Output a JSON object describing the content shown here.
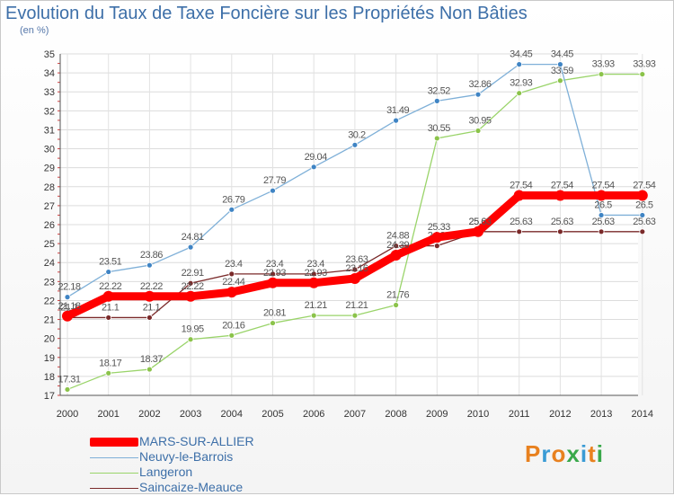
{
  "title": "Evolution du Taux de Taxe Foncière sur les Propriétés Non Bâties",
  "unit": "(en %)",
  "logo": {
    "text": "Proxiti",
    "colors": [
      "#e8811f",
      "#3a9bd5",
      "#e8811f",
      "#39a84a",
      "#3a9bd5",
      "#e8811f",
      "#39a84a"
    ]
  },
  "chart_data": {
    "type": "line",
    "title": "Evolution du Taux de Taxe Foncière sur les Propriétés Non Bâties",
    "ylabel": "(en %)",
    "xlabel": "",
    "ylim": [
      17,
      35
    ],
    "yticks": [
      17,
      18,
      19,
      20,
      21,
      22,
      23,
      24,
      25,
      26,
      27,
      28,
      29,
      30,
      31,
      32,
      33,
      34,
      35
    ],
    "categories": [
      "2000",
      "2001",
      "2002",
      "2003",
      "2004",
      "2005",
      "2006",
      "2007",
      "2008",
      "2009",
      "2010",
      "2011",
      "2012",
      "2013",
      "2014"
    ],
    "series": [
      {
        "name": "Saincaize-Meauce",
        "color": "#7a2a2a",
        "marker": "#7a2a2a",
        "values": [
          21.1,
          21.1,
          21.1,
          22.91,
          23.4,
          23.4,
          23.4,
          23.63,
          24.88,
          24.88,
          25.63,
          25.63,
          25.63,
          25.63,
          25.63
        ],
        "labels": [
          "21.1",
          "21.1",
          "21.1",
          "22.91",
          "23.4",
          "23.4",
          "23.4",
          "23.63",
          "24.88",
          "24.88",
          "25.63",
          "25.63",
          "25.63",
          "25.63",
          "25.63"
        ]
      },
      {
        "name": "Langeron",
        "color": "#9ad46a",
        "marker": "#8bc34a",
        "values": [
          17.31,
          18.17,
          18.37,
          19.95,
          20.16,
          20.81,
          21.21,
          21.21,
          21.76,
          30.55,
          30.95,
          32.93,
          33.59,
          33.93,
          33.93
        ],
        "labels": [
          "17.31",
          "18.17",
          "18.37",
          "19.95",
          "20.16",
          "20.81",
          "21.21",
          "21.21",
          "21.76",
          "30.55",
          "30.95",
          "32.93",
          "33.59",
          "33.93",
          "33.93"
        ]
      },
      {
        "name": "Neuvy-le-Barrois",
        "color": "#7fb0d8",
        "marker": "#3f84c4",
        "values": [
          22.18,
          23.51,
          23.86,
          24.81,
          26.79,
          27.79,
          29.04,
          30.2,
          31.49,
          32.52,
          32.86,
          34.45,
          34.45,
          26.5,
          26.5
        ],
        "labels": [
          "22.18",
          "23.51",
          "23.86",
          "24.81",
          "26.79",
          "27.79",
          "29.04",
          "30.2",
          "31.49",
          "32.52",
          "32.86",
          "34.45",
          "34.45",
          "26.5",
          "26.5"
        ]
      },
      {
        "name": "MARS-SUR-ALLIER",
        "color": "#ff0000",
        "marker": "#ff0000",
        "values": [
          21.18,
          22.22,
          22.22,
          22.22,
          22.44,
          22.93,
          22.93,
          23.16,
          24.39,
          25.33,
          25.63,
          27.54,
          27.54,
          27.54,
          27.54
        ],
        "labels": [
          "21.18",
          "22.22",
          "22.22",
          "22.22",
          "22.44",
          "22.93",
          "22.93",
          "23.16",
          "24.39",
          "25.33",
          "25.63",
          "27.54",
          "27.54",
          "27.54",
          "27.54"
        ]
      }
    ],
    "legend": {
      "position": "bottom-left",
      "entries": [
        "MARS-SUR-ALLIER",
        "Neuvy-le-Barrois",
        "Langeron",
        "Saincaize-Meauce"
      ]
    }
  }
}
